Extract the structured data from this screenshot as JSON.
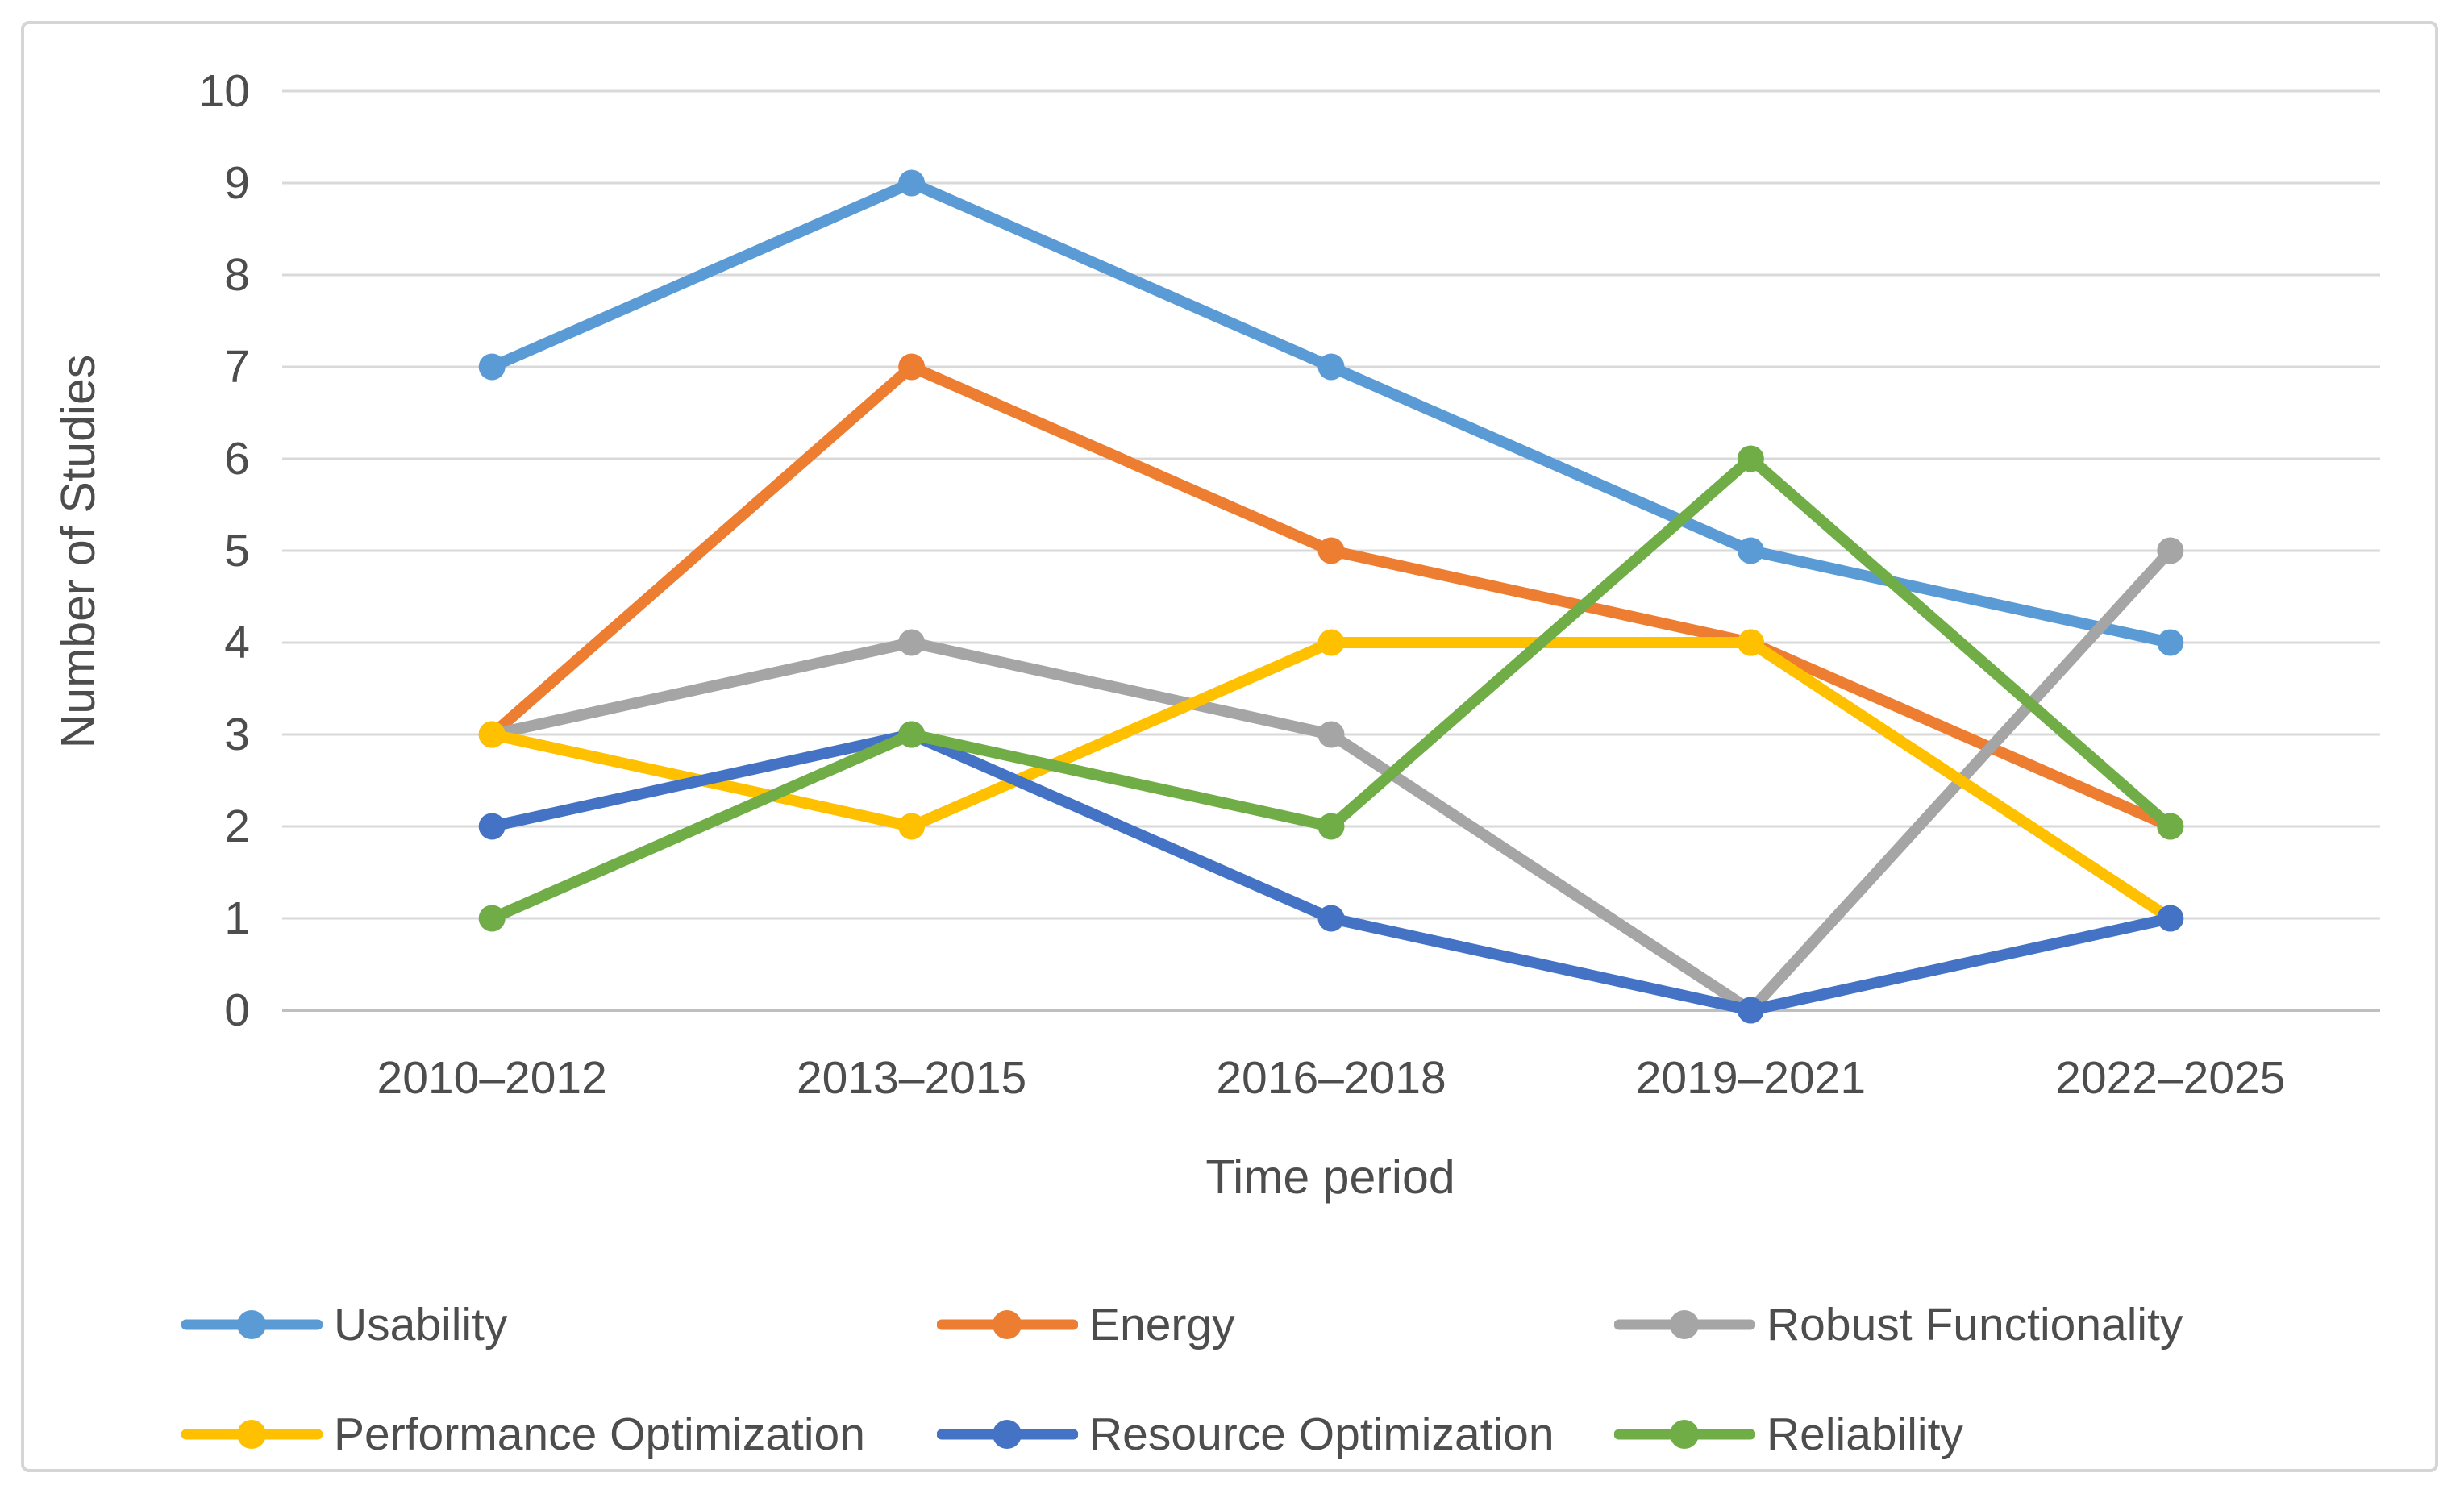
{
  "figure": {
    "background_color": "#FFFFFF",
    "border_color": "#D5D5D5"
  },
  "chart_data": {
    "type": "line",
    "title": "",
    "xlabel": "Time period",
    "ylabel": "Number of Studies",
    "categories": [
      "2010–2012",
      "2013–2015",
      "2016–2018",
      "2019–2021",
      "2022–2025"
    ],
    "series": [
      {
        "name": "Usability",
        "color": "#5B9BD5",
        "values": [
          7,
          9,
          7,
          5,
          4
        ]
      },
      {
        "name": "Energy",
        "color": "#ED7D31",
        "values": [
          3,
          7,
          5,
          4,
          2
        ]
      },
      {
        "name": "Robust Functionality",
        "color": "#A5A5A5",
        "values": [
          3,
          4,
          3,
          0,
          5
        ]
      },
      {
        "name": "Performance Optimization",
        "color": "#FFC000",
        "values": [
          3,
          2,
          4,
          4,
          1
        ]
      },
      {
        "name": "Resource Optimization",
        "color": "#4472C4",
        "values": [
          2,
          3,
          1,
          0,
          1
        ]
      },
      {
        "name": "Reliability",
        "color": "#70AD47",
        "values": [
          1,
          3,
          2,
          6,
          2
        ]
      }
    ],
    "ylim": [
      0,
      10
    ],
    "yticks": [
      0,
      1,
      2,
      3,
      4,
      5,
      6,
      7,
      8,
      9,
      10
    ],
    "grid": true,
    "gridline_color": "#D9D9D9",
    "axis_line_color": "#BFBFBF",
    "text_color": "#4D4D4D",
    "marker": "circle",
    "legend_position": "bottom",
    "legend_columns": 3,
    "legend_rows": [
      [
        "Usability",
        "Energy",
        "Robust Functionality"
      ],
      [
        "Performance Optimization",
        "Resource Optimization",
        "Reliability"
      ]
    ]
  }
}
